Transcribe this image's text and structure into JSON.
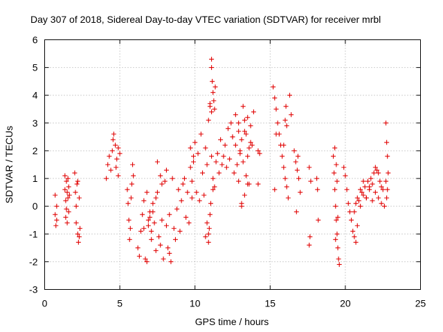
{
  "chart_data": {
    "type": "scatter",
    "title": "Day 307 of 2018, Sidereal Day-to-day VTEC variation (SDTVAR) for receiver mrbl",
    "xlabel": "GPS time / hours",
    "ylabel": "SDTVAR / TECUs",
    "xlim": [
      0,
      25
    ],
    "ylim": [
      -3,
      6
    ],
    "xticks": [
      "0",
      "5",
      "10",
      "15",
      "20",
      "25"
    ],
    "yticks": [
      "-3",
      "-2",
      "-1",
      "0",
      "1",
      "2",
      "3",
      "4",
      "5",
      "6"
    ],
    "grid": true,
    "marker": "+",
    "color": "#e00000",
    "series": [
      {
        "name": "SDTVAR",
        "x": [
          0.7,
          0.7,
          0.75,
          0.8,
          0.8,
          1.35,
          1.35,
          1.4,
          1.4,
          1.45,
          1.45,
          1.5,
          1.5,
          1.55,
          1.55,
          1.6,
          1.6,
          1.65,
          2.0,
          2.05,
          2.1,
          2.1,
          2.15,
          2.2,
          2.25,
          2.3,
          2.35,
          2.2,
          2.3,
          4.1,
          4.2,
          4.3,
          4.4,
          4.5,
          4.6,
          4.7,
          4.8,
          4.9,
          5.0,
          4.55,
          4.75,
          4.9,
          5.5,
          5.55,
          5.6,
          5.65,
          5.7,
          5.75,
          5.8,
          5.85,
          5.9,
          6.2,
          6.3,
          6.4,
          6.5,
          6.6,
          6.7,
          6.8,
          6.9,
          7.0,
          7.1,
          7.2,
          7.3,
          7.4,
          7.5,
          7.6,
          7.7,
          7.8,
          7.9,
          8.0,
          8.1,
          8.2,
          8.3,
          8.4,
          8.5,
          8.6,
          8.7,
          8.8,
          8.9,
          9.0,
          9.1,
          9.2,
          9.3,
          9.4,
          9.5,
          9.6,
          9.7,
          9.8,
          9.9,
          7.0,
          7.2,
          7.5,
          7.8,
          8.1,
          8.3,
          6.9,
          7.1,
          7.4,
          7.7,
          6.6,
          6.8,
          9.7,
          9.8,
          9.9,
          10.0,
          10.1,
          10.2,
          10.3,
          10.4,
          10.5,
          10.6,
          10.7,
          10.8,
          10.9,
          11.0,
          11.1,
          11.2,
          11.3,
          11.4,
          11.5,
          11.6,
          11.7,
          11.8,
          11.9,
          10.9,
          10.95,
          11.0,
          11.05,
          11.1,
          11.1,
          11.15,
          11.2,
          11.25,
          11.3,
          11.35,
          10.7,
          10.8,
          10.9,
          11.0,
          11.1,
          11.2,
          12.0,
          12.1,
          12.2,
          12.3,
          12.4,
          12.5,
          12.6,
          12.7,
          12.8,
          12.9,
          13.0,
          13.1,
          13.2,
          13.3,
          13.4,
          13.5,
          13.6,
          13.7,
          13.8,
          13.9,
          12.9,
          13.0,
          13.1,
          13.2,
          13.3,
          13.4,
          13.5,
          13.6,
          13.7,
          12.5,
          12.7,
          12.9,
          13.1,
          13.3,
          13.5,
          14.2,
          14.3,
          14.2,
          15.2,
          15.3,
          15.4,
          15.5,
          15.6,
          15.7,
          15.8,
          15.9,
          16.0,
          16.1,
          16.2,
          16.3,
          16.4,
          15.3,
          15.4,
          15.9,
          16.0,
          16.05,
          16.1,
          16.6,
          16.7,
          16.8,
          16.9,
          17.0,
          16.75,
          16.85,
          17.6,
          17.7,
          17.65,
          17.6,
          18.1,
          18.15,
          18.2,
          19.2,
          19.25,
          19.3,
          19.35,
          19.4,
          19.45,
          19.5,
          19.55,
          19.6,
          19.3,
          19.4,
          19.5,
          19.35,
          19.45,
          19.9,
          20.0,
          20.1,
          20.2,
          20.3,
          20.4,
          20.5,
          20.6,
          20.7,
          20.8,
          20.6,
          20.7,
          20.8,
          20.9,
          21.0,
          21.1,
          21.2,
          21.3,
          21.4,
          21.5,
          21.6,
          21.7,
          21.8,
          21.9,
          22.0,
          22.1,
          22.2,
          22.3,
          22.4,
          22.5,
          21.0,
          21.2,
          21.4,
          21.6,
          21.8,
          22.0,
          22.2,
          22.4,
          22.6,
          22.7,
          22.75,
          22.8,
          22.85,
          22.8,
          22.75,
          22.7
        ],
        "y": [
          0.4,
          -0.3,
          -0.7,
          0.0,
          -0.5,
          1.1,
          0.6,
          0.2,
          -0.4,
          0.9,
          -0.1,
          0.5,
          -0.6,
          1.0,
          0.3,
          0.7,
          -0.2,
          0.4,
          1.2,
          0.5,
          0.0,
          -0.6,
          0.8,
          -1.0,
          -1.3,
          0.3,
          -0.8,
          0.9,
          -1.1,
          1.0,
          1.5,
          1.8,
          1.3,
          2.0,
          2.6,
          2.2,
          1.7,
          1.1,
          1.9,
          2.4,
          1.4,
          2.1,
          0.6,
          0.1,
          -0.5,
          -1.2,
          -0.8,
          0.3,
          0.8,
          1.5,
          1.1,
          -1.5,
          -1.8,
          -0.9,
          -0.3,
          0.2,
          -1.9,
          -2.0,
          -0.7,
          -0.4,
          -1.2,
          -0.2,
          -0.6,
          -1.6,
          0.5,
          -1.1,
          -1.4,
          -0.5,
          -1.9,
          0.9,
          -0.7,
          -1.5,
          -0.3,
          -2.0,
          1.0,
          -0.8,
          -1.2,
          -0.1,
          0.6,
          -0.9,
          0.2,
          0.8,
          1.0,
          -0.4,
          0.5,
          -0.6,
          1.4,
          0.9,
          1.8,
          -0.2,
          0.1,
          1.6,
          0.8,
          1.3,
          -1.7,
          -0.5,
          -0.9,
          0.3,
          1.1,
          -0.8,
          0.5,
          2.1,
          0.3,
          1.6,
          2.3,
          0.5,
          1.9,
          0.2,
          2.6,
          1.2,
          0.4,
          2.1,
          1.5,
          3.1,
          3.6,
          1.8,
          1.0,
          0.7,
          1.6,
          1.9,
          1.2,
          2.4,
          1.5,
          1.8,
          -1.0,
          -0.8,
          -0.3,
          0.1,
          5.3,
          5.0,
          4.5,
          4.1,
          3.8,
          3.5,
          4.3,
          -1.1,
          -0.6,
          -1.3,
          3.7,
          3.4,
          0.6,
          2.2,
          1.4,
          2.8,
          1.7,
          3.0,
          2.5,
          1.2,
          3.3,
          1.5,
          0.9,
          2.0,
          0.1,
          3.6,
          2.7,
          1.1,
          3.2,
          0.8,
          2.9,
          2.2,
          3.4,
          3.0,
          1.9,
          2.4,
          1.6,
          3.1,
          2.6,
          1.8,
          2.1,
          2.3,
          2.5,
          2.2,
          2.7,
          0.0,
          0.4,
          0.8,
          2.0,
          1.9,
          0.8,
          4.3,
          3.9,
          3.5,
          3.0,
          2.6,
          2.2,
          1.8,
          1.4,
          1.0,
          0.7,
          0.3,
          4.0,
          3.3,
          0.6,
          2.6,
          2.2,
          3.1,
          3.6,
          2.9,
          2.0,
          1.6,
          1.3,
          1.0,
          0.5,
          -0.2,
          1.8,
          1.4,
          0.9,
          -1.1,
          -1.4,
          1.0,
          0.6,
          -0.5,
          1.8,
          1.2,
          0.6,
          0.0,
          -0.5,
          -1.0,
          -1.5,
          -1.9,
          -2.1,
          2.1,
          1.5,
          -0.4,
          -1.2,
          0.9,
          1.4,
          1.1,
          0.6,
          0.1,
          -0.2,
          -0.5,
          -0.9,
          -1.1,
          -1.3,
          -0.7,
          -0.2,
          0.1,
          0.3,
          0.2,
          0.0,
          0.5,
          0.4,
          0.7,
          0.3,
          0.9,
          0.6,
          1.0,
          0.8,
          1.2,
          1.4,
          1.3,
          1.2,
          0.9,
          0.7,
          0.6,
          0.6,
          0.9,
          0.3,
          0.7,
          0.2,
          0.5,
          0.3,
          0.1,
          0.0,
          3.0,
          2.3,
          1.8,
          1.2,
          0.6,
          0.3,
          0.9
        ]
      }
    ]
  }
}
